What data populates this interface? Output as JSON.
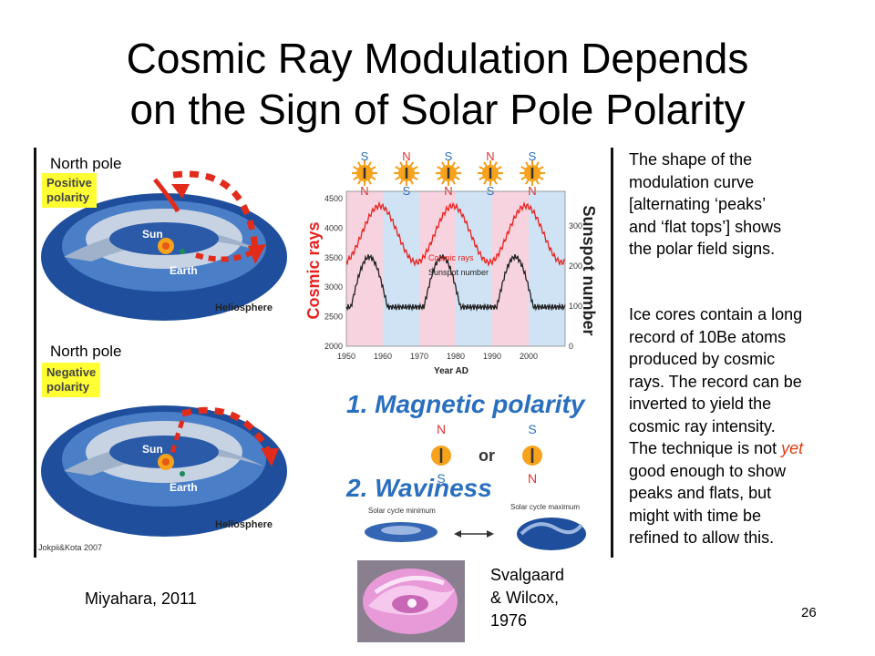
{
  "slide": {
    "title_line1": "Cosmic Ray Modulation Depends",
    "title_line2": "on the Sign of Solar Pole Polarity",
    "page_number": "26"
  },
  "figure": {
    "top_panel": {
      "pole_label": "North pole",
      "polarity_line1": "Positive",
      "polarity_line2": "polarity",
      "sun_label": "Sun",
      "earth_label": "Earth",
      "heliosphere_label": "Heliosphere"
    },
    "bottom_panel": {
      "pole_label": "North pole",
      "polarity_line1": "Negative",
      "polarity_line2": "polarity",
      "sun_label": "Sun",
      "earth_label": "Earth",
      "heliosphere_label": "Heliosphere",
      "credit": "Jokpii&Kota 2007"
    },
    "graph": {
      "left_axis_label": "Cosmic rays",
      "right_axis_label": "Sunspot number",
      "x_axis_label": "Year AD",
      "x_ticks": [
        "1950",
        "1960",
        "1970",
        "1980",
        "1990",
        "2000"
      ],
      "left_ticks": [
        "4500",
        "4000",
        "3500",
        "3000",
        "2500",
        "2000"
      ],
      "right_ticks": [
        "300",
        "200",
        "100",
        "0"
      ],
      "legend_cosmic": "Cosmic rays",
      "legend_sunspot": "Sunspot number",
      "pole_letters": [
        {
          "top": "S",
          "bottom": "N"
        },
        {
          "top": "N",
          "bottom": "S"
        },
        {
          "top": "S",
          "bottom": "N"
        },
        {
          "top": "N",
          "bottom": "S"
        },
        {
          "top": "S",
          "bottom": "N"
        }
      ],
      "colors": {
        "cosmic_ray_line": "#e8221e",
        "sunspot_line": "#222222",
        "positive_band": "#cfe3f5",
        "negative_band": "#f6d3de"
      }
    },
    "item1": "1. Magnetic polarity",
    "item1_or": "or",
    "item1_poles": [
      {
        "top": "N",
        "bottom": "S"
      },
      {
        "top": "S",
        "bottom": "N"
      }
    ],
    "item2": "2. Waviness",
    "cycle_min_label": "Solar cycle minimum",
    "cycle_max_label": "Solar cycle maximum"
  },
  "text_block1": {
    "lines": [
      "The shape of the",
      "modulation curve",
      "[alternating ‘peaks’",
      "and ‘flat tops’] shows",
      "the polar field signs."
    ]
  },
  "text_block2": {
    "lines": [
      "Ice cores contain a long",
      "record of 10Be atoms",
      "produced by cosmic",
      "rays. The record can be",
      "inverted to yield the",
      "cosmic ray intensity.",
      "The technique is not ",
      "good enough to show",
      "peaks and flats, but",
      "might with time be",
      "refined to allow this."
    ],
    "emphasis": "yet"
  },
  "citations": {
    "miyahara": "Miyahara, 2011",
    "svalgaard_line1": "Svalgaard",
    "svalgaard_line2": "& Wilcox,",
    "svalgaard_line3": "1976"
  }
}
